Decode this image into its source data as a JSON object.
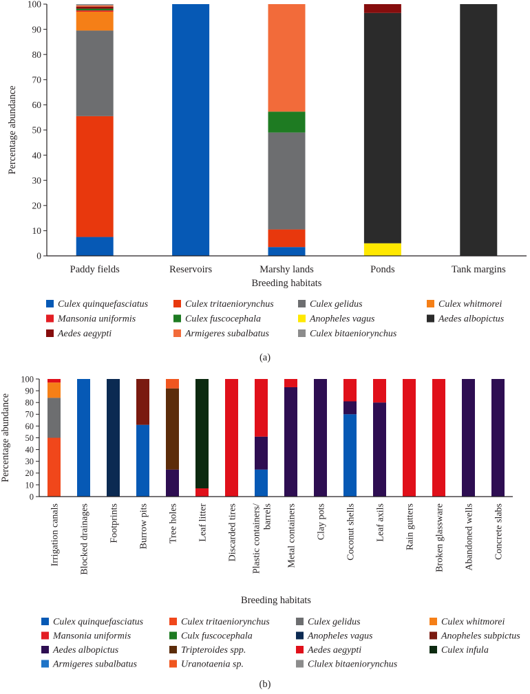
{
  "chart_data": [
    {
      "type": "bar",
      "stacked": true,
      "panel_label": "(a)",
      "title": "",
      "xlabel": "Breeding habitats",
      "ylabel": "Percentage abundance",
      "ylim": [
        0,
        100
      ],
      "yticks": [
        0,
        10,
        20,
        30,
        40,
        50,
        60,
        70,
        80,
        90,
        100
      ],
      "grid": false,
      "legend_position": "bottom",
      "categories": [
        "Paddy fields",
        "Reservoirs",
        "Marshy lands",
        "Ponds",
        "Tank margins"
      ],
      "series": [
        {
          "name": "Culex quinquefasciatus",
          "color": "#0659b5",
          "values": [
            7.5,
            100,
            3.5,
            0,
            0
          ]
        },
        {
          "name": "Culex tritaeniorynchus",
          "color": "#e8380d",
          "values": [
            48,
            0,
            7,
            0,
            0
          ]
        },
        {
          "name": "Culex gelidus",
          "color": "#6d6e70",
          "values": [
            34,
            0,
            38.5,
            0,
            0
          ]
        },
        {
          "name": "Culex whitmorei",
          "color": "#f57f17",
          "values": [
            7.5,
            0,
            0,
            0,
            0
          ]
        },
        {
          "name": "Mansonia uniformis",
          "color": "#e31e24",
          "values": [
            0.5,
            0,
            0,
            0,
            0
          ]
        },
        {
          "name": "Culex fuscocephala",
          "color": "#1e7b22",
          "values": [
            0.7,
            0,
            8.3,
            0,
            0
          ]
        },
        {
          "name": "Anopheles vagus",
          "color": "#ffe800",
          "values": [
            0,
            0,
            0,
            5,
            0
          ]
        },
        {
          "name": "Aedes albopictus",
          "color": "#2b2b2b",
          "values": [
            0,
            0,
            0,
            91.5,
            100
          ]
        },
        {
          "name": "Aedes aegypti",
          "color": "#860d0d",
          "values": [
            0.8,
            0,
            0,
            3.5,
            0
          ]
        },
        {
          "name": "Armigeres subalbatus",
          "color": "#f26b3a",
          "values": [
            0.5,
            0,
            42.7,
            0,
            0
          ]
        },
        {
          "name": "Culex bitaeniorynchus",
          "color": "#8c8c8c",
          "values": [
            0.5,
            0,
            0,
            0,
            0
          ]
        }
      ]
    },
    {
      "type": "bar",
      "stacked": true,
      "panel_label": "(b)",
      "title": "",
      "xlabel": "Breeding habitats",
      "ylabel": "Percentage abundance",
      "ylim": [
        0,
        100
      ],
      "yticks": [
        0,
        10,
        20,
        30,
        40,
        50,
        60,
        70,
        80,
        90,
        100
      ],
      "grid": false,
      "legend_position": "bottom",
      "categories": [
        "Irrigation canals",
        "Blocked drainages",
        "Footprints",
        "Burrow pits",
        "Tree holes",
        "Leaf litter",
        "Discarded tires",
        "Plastic containers/\nbarrels",
        "Metal containers",
        "Clay pots",
        "Coconut shells",
        "Leaf axils",
        "Rain gutters",
        "Broken glassware",
        "Abandoned wells",
        "Concrete slabs"
      ],
      "series": [
        {
          "name": "Culex quinquefasciatus",
          "color": "#0659b5",
          "values": [
            0,
            100,
            0,
            61,
            0,
            0,
            0,
            23,
            0,
            0,
            70,
            0,
            0,
            0,
            0,
            0
          ]
        },
        {
          "name": "Culex tritaeniorynchus",
          "color": "#f0471b",
          "values": [
            50,
            0,
            0,
            0,
            0,
            0,
            0,
            0,
            0,
            0,
            0,
            0,
            0,
            0,
            0,
            0
          ]
        },
        {
          "name": "Culex gelidus",
          "color": "#6d6e70",
          "values": [
            34,
            0,
            0,
            0,
            0,
            0,
            0,
            0,
            0,
            0,
            0,
            0,
            0,
            0,
            0,
            0
          ]
        },
        {
          "name": "Culex whitmorei",
          "color": "#f57f17",
          "values": [
            13,
            0,
            0,
            0,
            0,
            0,
            0,
            0,
            0,
            0,
            0,
            0,
            0,
            0,
            0,
            0
          ]
        },
        {
          "name": "Mansonia uniformis",
          "color": "#e31e24",
          "values": [
            0,
            0,
            0,
            0,
            0,
            0,
            0,
            0,
            0,
            0,
            0,
            0,
            0,
            0,
            0,
            0
          ]
        },
        {
          "name": "Culx fuscocephala",
          "color": "#1e7b22",
          "values": [
            0,
            0,
            0,
            0,
            0,
            0,
            0,
            0,
            0,
            0,
            0,
            0,
            0,
            0,
            0,
            0
          ]
        },
        {
          "name": "Anopheles vagus",
          "color": "#0b2a52",
          "values": [
            0,
            0,
            100,
            0,
            0,
            0,
            0,
            0,
            0,
            0,
            0,
            0,
            0,
            0,
            0,
            0
          ]
        },
        {
          "name": "Anopheles subpictus",
          "color": "#7a1a10",
          "values": [
            0,
            0,
            0,
            39,
            0,
            0,
            0,
            0,
            0,
            0,
            0,
            0,
            0,
            0,
            0,
            0
          ]
        },
        {
          "name": "Aedes albopictus",
          "color": "#2e0e52",
          "values": [
            0,
            0,
            0,
            0,
            23,
            0,
            0,
            28,
            93,
            100,
            11,
            80,
            0,
            0,
            100,
            100
          ]
        },
        {
          "name": "Tripteroides spp.",
          "color": "#5c2c0a",
          "values": [
            0,
            0,
            0,
            0,
            69,
            0,
            0,
            0,
            0,
            0,
            0,
            0,
            0,
            0,
            0,
            0
          ]
        },
        {
          "name": "Aedes aegypti",
          "color": "#e0101a",
          "values": [
            3,
            0,
            0,
            0,
            0,
            7,
            100,
            49,
            7,
            0,
            19,
            20,
            100,
            100,
            0,
            0
          ]
        },
        {
          "name": "Culex infula",
          "color": "#0c2a10",
          "values": [
            0,
            0,
            0,
            0,
            0,
            93,
            0,
            0,
            0,
            0,
            0,
            0,
            0,
            0,
            0,
            0
          ]
        },
        {
          "name": "Armigeres subalbatus",
          "color": "#1f74c7",
          "values": [
            0,
            0,
            0,
            0,
            0,
            0,
            0,
            0,
            0,
            0,
            0,
            0,
            0,
            0,
            0,
            0
          ]
        },
        {
          "name": "Uranotaenia sp.",
          "color": "#f0561f",
          "values": [
            0,
            0,
            0,
            0,
            8,
            0,
            0,
            0,
            0,
            0,
            0,
            0,
            0,
            0,
            0,
            0
          ]
        },
        {
          "name": "Clulex bitaeniorynchus",
          "color": "#8c8c8c",
          "values": [
            0,
            0,
            0,
            0,
            0,
            0,
            0,
            0,
            0,
            0,
            0,
            0,
            0,
            0,
            0,
            0
          ]
        }
      ]
    }
  ]
}
